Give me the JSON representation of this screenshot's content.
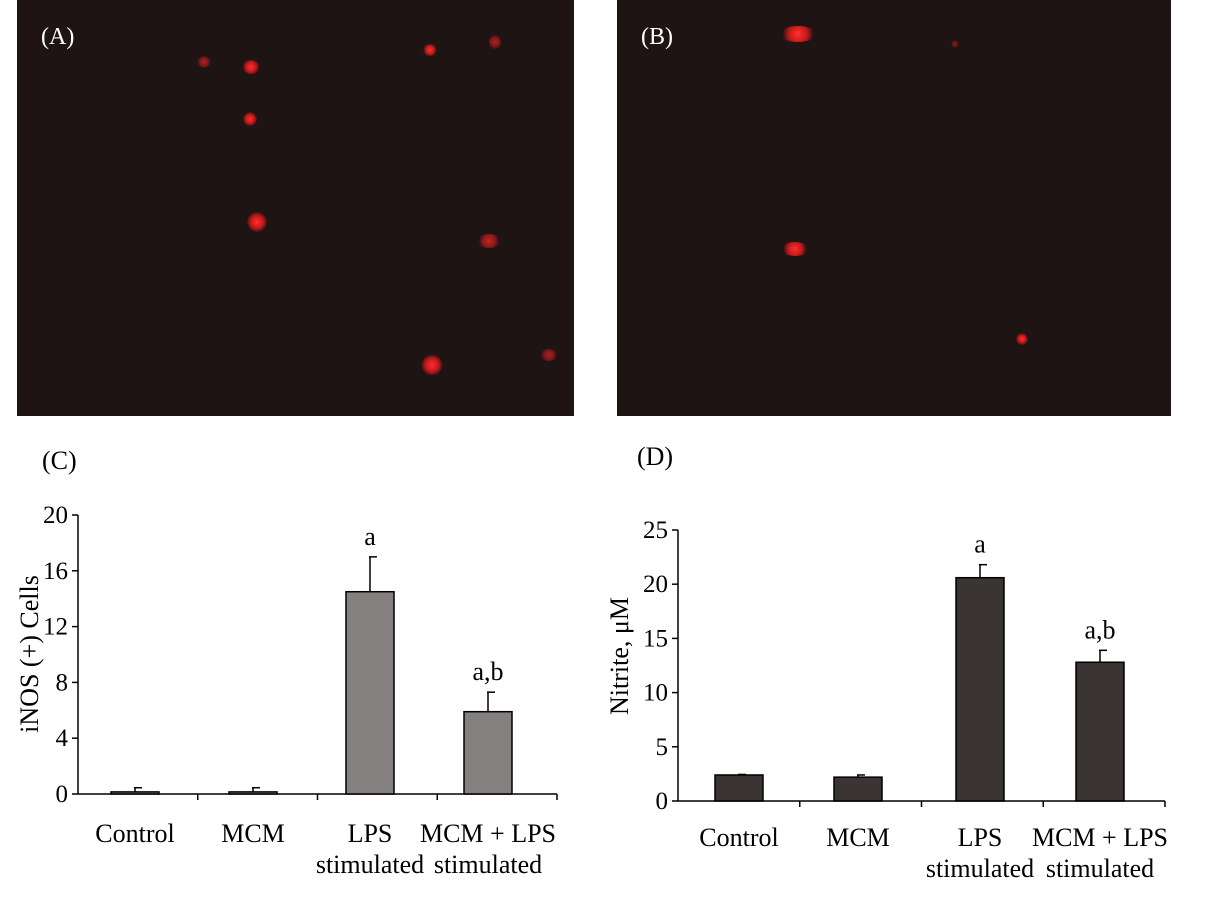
{
  "panels": {
    "a": {
      "label": "(A)"
    },
    "b": {
      "label": "(B)"
    },
    "c": {
      "label": "(C)"
    },
    "d": {
      "label": "(D)"
    }
  },
  "colors": {
    "image_background": "#1e1414",
    "cell_red": "#e02020",
    "bar_c": "#858080",
    "bar_d": "#3a3433"
  },
  "chart_data": [
    {
      "type": "bar",
      "title": "",
      "xlabel": "",
      "ylabel": "iNOS (+) Cells",
      "ylim": [
        0,
        20
      ],
      "yticks": [
        0,
        4,
        8,
        12,
        16,
        20
      ],
      "categories": [
        [
          "Control"
        ],
        [
          "MCM"
        ],
        [
          "LPS",
          "stimulated"
        ],
        [
          "MCM + LPS",
          "stimulated"
        ]
      ],
      "values": [
        0.15,
        0.15,
        14.5,
        5.9
      ],
      "errors": [
        0.3,
        0.3,
        2.5,
        1.4
      ],
      "annotations": [
        "",
        "",
        "a",
        "a,b"
      ],
      "color": "#858080"
    },
    {
      "type": "bar",
      "title": "",
      "xlabel": "",
      "ylabel": "Nitrite, μM",
      "ylim": [
        0,
        25
      ],
      "yticks": [
        0,
        5,
        10,
        15,
        20,
        25
      ],
      "categories": [
        [
          "Control"
        ],
        [
          "MCM"
        ],
        [
          "LPS",
          "stimulated"
        ],
        [
          "MCM + LPS",
          "stimulated"
        ]
      ],
      "values": [
        2.4,
        2.2,
        20.6,
        12.8
      ],
      "errors": [
        0.05,
        0.2,
        1.2,
        1.1
      ],
      "annotations": [
        "",
        "",
        "a",
        "a,b"
      ],
      "color": "#3a3433"
    }
  ]
}
